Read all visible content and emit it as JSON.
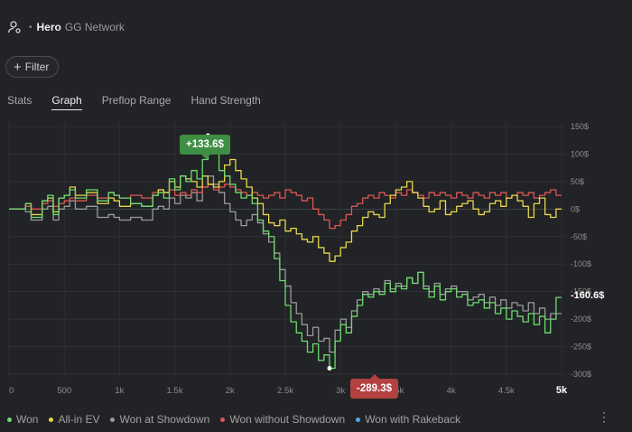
{
  "header": {
    "player": "Hero",
    "network": "GG Network",
    "separator": "•"
  },
  "filter": {
    "label": "Filter"
  },
  "tabs": [
    {
      "label": "Stats",
      "active": false
    },
    {
      "label": "Graph",
      "active": true
    },
    {
      "label": "Preflop Range",
      "active": false
    },
    {
      "label": "Hand Strength",
      "active": false
    }
  ],
  "markers": {
    "max_label": "+133.6$",
    "min_label": "-289.3$",
    "final_label": "-160.6$"
  },
  "legend": [
    {
      "label": "Won",
      "color": "#6edb6e"
    },
    {
      "label": "All-in EV",
      "color": "#e8d84a"
    },
    {
      "label": "Won at Showdown",
      "color": "#9a9a9a"
    },
    {
      "label": "Won without Showdown",
      "color": "#e05555"
    },
    {
      "label": "Won with Rakeback",
      "color": "#5aa9e6"
    }
  ],
  "more_menu": "⋮",
  "chart_data": {
    "type": "line",
    "x_ticks": [
      "0",
      "500",
      "1k",
      "1.5k",
      "2k",
      "2.5k",
      "3k",
      "3.5k",
      "4k",
      "4.5k",
      "5k"
    ],
    "y_ticks": [
      "150$",
      "100$",
      "50$",
      "0$",
      "-50$",
      "-100$",
      "-150$",
      "-200$",
      "-250$",
      "-300$"
    ],
    "xlim": [
      0,
      5000
    ],
    "ylim": [
      -300,
      150
    ],
    "grid": true,
    "legend": "bottom",
    "series": [
      {
        "name": "Won",
        "color": "#6edb6e",
        "x": [
          0,
          150,
          200,
          300,
          350,
          400,
          450,
          500,
          550,
          600,
          700,
          800,
          900,
          950,
          1000,
          1100,
          1200,
          1300,
          1350,
          1400,
          1450,
          1500,
          1550,
          1600,
          1650,
          1700,
          1750,
          1800,
          1850,
          1900,
          1950,
          2000,
          2050,
          2100,
          2150,
          2200,
          2250,
          2300,
          2350,
          2400,
          2450,
          2500,
          2550,
          2600,
          2650,
          2700,
          2750,
          2800,
          2850,
          2900,
          2950,
          3000,
          3050,
          3100,
          3150,
          3200,
          3250,
          3300,
          3350,
          3400,
          3450,
          3500,
          3550,
          3600,
          3650,
          3700,
          3750,
          3800,
          3850,
          3900,
          3950,
          4000,
          4050,
          4100,
          4150,
          4200,
          4250,
          4300,
          4350,
          4400,
          4450,
          4500,
          4550,
          4600,
          4650,
          4700,
          4750,
          4800,
          4850,
          4900,
          4950,
          5000
        ],
        "y": [
          0,
          10,
          -15,
          15,
          25,
          -10,
          20,
          25,
          35,
          20,
          35,
          15,
          30,
          25,
          20,
          10,
          5,
          25,
          30,
          20,
          55,
          35,
          60,
          50,
          70,
          55,
          90,
          133.6,
          105,
          70,
          60,
          45,
          30,
          20,
          25,
          10,
          -20,
          -40,
          -50,
          -90,
          -130,
          -175,
          -205,
          -225,
          -240,
          -260,
          -245,
          -275,
          -265,
          -289.3,
          -240,
          -210,
          -225,
          -195,
          -175,
          -155,
          -160,
          -150,
          -155,
          -135,
          -150,
          -140,
          -145,
          -125,
          -135,
          -115,
          -145,
          -160,
          -140,
          -165,
          -150,
          -145,
          -160,
          -155,
          -175,
          -170,
          -165,
          -180,
          -170,
          -190,
          -180,
          -200,
          -185,
          -195,
          -205,
          -190,
          -210,
          -195,
          -225,
          -200,
          -160.6,
          -160.6
        ]
      },
      {
        "name": "All-in EV",
        "color": "#e8d84a",
        "x": [
          0,
          150,
          200,
          300,
          350,
          400,
          450,
          500,
          550,
          600,
          700,
          800,
          900,
          950,
          1000,
          1100,
          1200,
          1300,
          1350,
          1400,
          1450,
          1500,
          1550,
          1600,
          1650,
          1700,
          1750,
          1800,
          1850,
          1900,
          1950,
          2000,
          2050,
          2100,
          2150,
          2200,
          2250,
          2300,
          2350,
          2400,
          2450,
          2500,
          2550,
          2600,
          2650,
          2700,
          2750,
          2800,
          2850,
          2900,
          2950,
          3000,
          3050,
          3100,
          3150,
          3200,
          3250,
          3300,
          3350,
          3400,
          3450,
          3500,
          3550,
          3600,
          3650,
          3700,
          3750,
          3800,
          3850,
          3900,
          3950,
          4000,
          4050,
          4100,
          4150,
          4200,
          4250,
          4300,
          4350,
          4400,
          4450,
          4500,
          4550,
          4600,
          4650,
          4700,
          4750,
          4800,
          4850,
          4900,
          4950,
          5000
        ],
        "y": [
          0,
          10,
          -10,
          15,
          20,
          -5,
          20,
          25,
          40,
          25,
          30,
          10,
          20,
          15,
          5,
          10,
          5,
          25,
          35,
          30,
          50,
          40,
          60,
          55,
          50,
          40,
          60,
          45,
          40,
          50,
          80,
          90,
          70,
          55,
          40,
          20,
          10,
          -10,
          -25,
          -30,
          -20,
          -40,
          -35,
          -45,
          -55,
          -60,
          -50,
          -70,
          -80,
          -95,
          -85,
          -70,
          -60,
          -40,
          -30,
          -15,
          -5,
          -10,
          -15,
          10,
          25,
          35,
          40,
          50,
          30,
          20,
          5,
          -5,
          0,
          15,
          -10,
          -5,
          5,
          10,
          15,
          0,
          -10,
          -5,
          10,
          15,
          5,
          20,
          25,
          15,
          5,
          -15,
          10,
          20,
          -10,
          -15,
          0,
          0
        ]
      },
      {
        "name": "Won at Showdown",
        "color": "#9a9a9a",
        "x": [
          0,
          150,
          200,
          300,
          350,
          400,
          450,
          500,
          550,
          600,
          700,
          800,
          900,
          950,
          1000,
          1100,
          1200,
          1300,
          1350,
          1400,
          1450,
          1500,
          1550,
          1600,
          1650,
          1700,
          1750,
          1800,
          1850,
          1900,
          1950,
          2000,
          2050,
          2100,
          2150,
          2200,
          2250,
          2300,
          2350,
          2400,
          2450,
          2500,
          2550,
          2600,
          2650,
          2700,
          2750,
          2800,
          2850,
          2900,
          2950,
          3000,
          3050,
          3100,
          3150,
          3200,
          3250,
          3300,
          3350,
          3400,
          3450,
          3500,
          3550,
          3600,
          3650,
          3700,
          3750,
          3800,
          3850,
          3900,
          3950,
          4000,
          4050,
          4100,
          4150,
          4200,
          4250,
          4300,
          4350,
          4400,
          4450,
          4500,
          4550,
          4600,
          4650,
          4700,
          4750,
          4800,
          4850,
          4900,
          4950,
          5000
        ],
        "y": [
          0,
          -5,
          -20,
          0,
          5,
          -20,
          0,
          5,
          15,
          0,
          5,
          -15,
          -10,
          -15,
          -20,
          -15,
          -20,
          0,
          5,
          0,
          20,
          10,
          25,
          20,
          30,
          15,
          40,
          60,
          45,
          30,
          10,
          -5,
          -20,
          -30,
          -20,
          -10,
          -25,
          -45,
          -60,
          -80,
          -110,
          -140,
          -170,
          -190,
          -210,
          -230,
          -215,
          -240,
          -235,
          -260,
          -220,
          -200,
          -215,
          -185,
          -165,
          -150,
          -155,
          -145,
          -150,
          -130,
          -145,
          -135,
          -140,
          -125,
          -135,
          -115,
          -140,
          -150,
          -135,
          -155,
          -145,
          -140,
          -150,
          -150,
          -165,
          -160,
          -155,
          -170,
          -160,
          -175,
          -165,
          -180,
          -170,
          -175,
          -185,
          -170,
          -190,
          -180,
          -200,
          -190,
          -190,
          -190
        ]
      },
      {
        "name": "Won without Showdown",
        "color": "#e05555",
        "x": [
          0,
          150,
          200,
          300,
          350,
          400,
          450,
          500,
          550,
          600,
          700,
          800,
          900,
          950,
          1000,
          1100,
          1200,
          1300,
          1350,
          1400,
          1450,
          1500,
          1550,
          1600,
          1650,
          1700,
          1750,
          1800,
          1850,
          1900,
          1950,
          2000,
          2050,
          2100,
          2150,
          2200,
          2250,
          2300,
          2350,
          2400,
          2450,
          2500,
          2550,
          2600,
          2650,
          2700,
          2750,
          2800,
          2850,
          2900,
          2950,
          3000,
          3050,
          3100,
          3150,
          3200,
          3250,
          3300,
          3350,
          3400,
          3450,
          3500,
          3550,
          3600,
          3650,
          3700,
          3750,
          3800,
          3850,
          3900,
          3950,
          4000,
          4050,
          4100,
          4150,
          4200,
          4250,
          4300,
          4350,
          4400,
          4450,
          4500,
          4550,
          4600,
          4650,
          4700,
          4750,
          4800,
          4850,
          4900,
          4950,
          5000
        ],
        "y": [
          0,
          5,
          0,
          10,
          15,
          5,
          10,
          15,
          20,
          15,
          25,
          20,
          30,
          25,
          20,
          25,
          20,
          30,
          35,
          30,
          35,
          25,
          30,
          25,
          35,
          30,
          40,
          45,
          35,
          40,
          45,
          40,
          35,
          30,
          25,
          30,
          25,
          20,
          25,
          30,
          20,
          35,
          30,
          25,
          15,
          20,
          0,
          -10,
          -20,
          -35,
          -30,
          -20,
          -10,
          5,
          10,
          20,
          25,
          20,
          30,
          25,
          20,
          30,
          25,
          35,
          30,
          25,
          20,
          30,
          25,
          30,
          25,
          20,
          30,
          25,
          20,
          30,
          25,
          20,
          30,
          25,
          30,
          20,
          25,
          30,
          25,
          30,
          20,
          25,
          30,
          35,
          25,
          25
        ]
      }
    ],
    "annotations": [
      {
        "label": "+133.6$",
        "x": 1800,
        "y": 133.6
      },
      {
        "label": "-289.3$",
        "x": 2900,
        "y": -289.3
      },
      {
        "label": "-160.6$",
        "x": 5000,
        "y": -160.6
      }
    ]
  }
}
